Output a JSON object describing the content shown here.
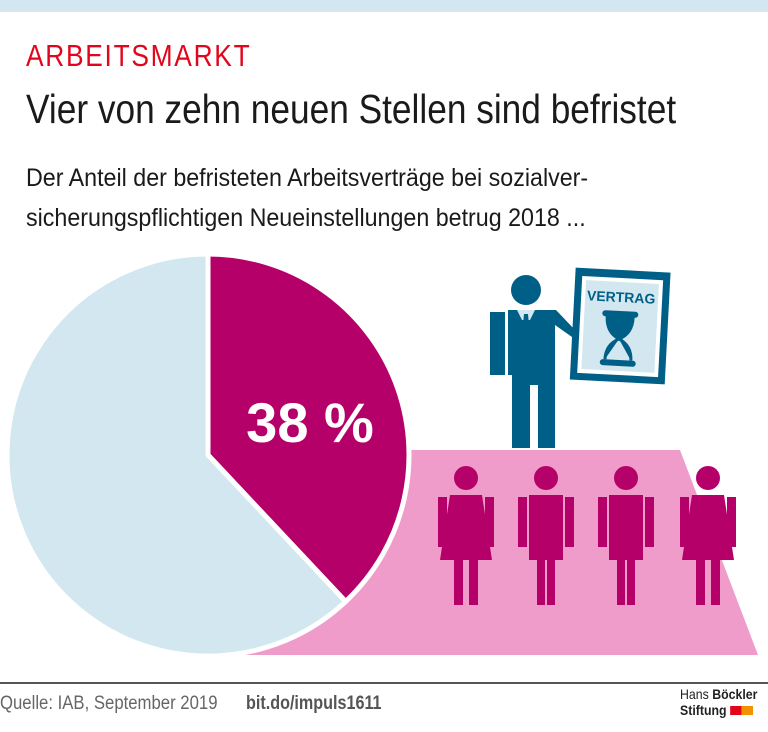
{
  "header": {
    "kicker": "ARBEITSMARKT",
    "title": "Vier von zehn neuen Stellen sind befristet",
    "subtitle_line1": "Der Anteil der befristeten Arbeitsverträge bei sozialver-",
    "subtitle_line2": "sicherungspflichtigen Neueinstellungen betrug 2018 ..."
  },
  "chart_data": {
    "type": "pie",
    "slices": [
      {
        "label": "38 %",
        "value": 38,
        "color": "#b5006a"
      },
      {
        "value": 62,
        "color": "#d2e7ef"
      }
    ]
  },
  "illustration": {
    "document_label": "VERTRAG",
    "colors": {
      "figure": "#005f87",
      "people": "#b5006a",
      "platform": "#ef9ccb"
    }
  },
  "footer": {
    "source": "Quelle: IAB, September 2019",
    "link": "bit.do/impuls1611",
    "logo_line1_light": "Hans ",
    "logo_line1_bold": "Böckler",
    "logo_line2": "Stiftung"
  }
}
